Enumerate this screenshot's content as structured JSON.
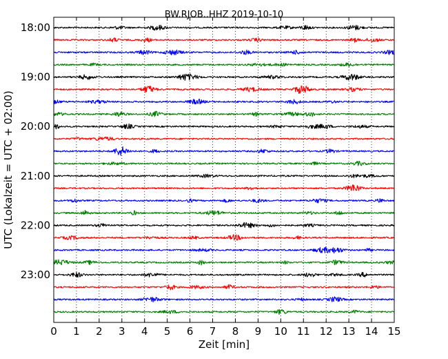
{
  "chart_data": {
    "type": "line",
    "title": "BW.RJOB..HHZ 2019-10-10",
    "xlabel": "Zeit  [min]",
    "ylabel": "UTC (Lokalzeit = UTC + 02:00)",
    "xlim": [
      0,
      15
    ],
    "x_ticks": [
      0,
      1,
      2,
      3,
      4,
      5,
      6,
      7,
      8,
      9,
      10,
      11,
      12,
      13,
      14,
      15
    ],
    "y_tick_labels": [
      "18:00",
      "19:00",
      "20:00",
      "21:00",
      "22:00",
      "23:00"
    ],
    "y_tick_trace_index": [
      0,
      4,
      8,
      12,
      16,
      20
    ],
    "trace_colors": [
      "#000000",
      "#ff0000",
      "#0000ff",
      "#008000"
    ],
    "trace_start_times": [
      "18:00",
      "18:15",
      "18:30",
      "18:45",
      "19:00",
      "19:15",
      "19:30",
      "19:45",
      "20:00",
      "20:15",
      "20:30",
      "20:45",
      "21:00",
      "21:15",
      "21:30",
      "21:45",
      "22:00",
      "22:15",
      "22:30",
      "22:45",
      "23:00",
      "23:15",
      "23:30",
      "23:45"
    ],
    "grid": "vertical dotted at each minute",
    "series": [
      {
        "start": "18:00",
        "color": "#000000"
      },
      {
        "start": "18:15",
        "color": "#ff0000"
      },
      {
        "start": "18:30",
        "color": "#0000ff"
      },
      {
        "start": "18:45",
        "color": "#008000"
      },
      {
        "start": "19:00",
        "color": "#000000"
      },
      {
        "start": "19:15",
        "color": "#ff0000"
      },
      {
        "start": "19:30",
        "color": "#0000ff"
      },
      {
        "start": "19:45",
        "color": "#008000"
      },
      {
        "start": "20:00",
        "color": "#000000"
      },
      {
        "start": "20:15",
        "color": "#ff0000"
      },
      {
        "start": "20:30",
        "color": "#0000ff"
      },
      {
        "start": "20:45",
        "color": "#008000"
      },
      {
        "start": "21:00",
        "color": "#000000"
      },
      {
        "start": "21:15",
        "color": "#ff0000"
      },
      {
        "start": "21:30",
        "color": "#0000ff"
      },
      {
        "start": "21:45",
        "color": "#008000"
      },
      {
        "start": "22:00",
        "color": "#000000"
      },
      {
        "start": "22:15",
        "color": "#ff0000"
      },
      {
        "start": "22:30",
        "color": "#0000ff"
      },
      {
        "start": "22:45",
        "color": "#008000"
      },
      {
        "start": "23:00",
        "color": "#000000"
      },
      {
        "start": "23:15",
        "color": "#ff0000"
      },
      {
        "start": "23:30",
        "color": "#0000ff"
      },
      {
        "start": "23:45",
        "color": "#008000"
      }
    ]
  }
}
